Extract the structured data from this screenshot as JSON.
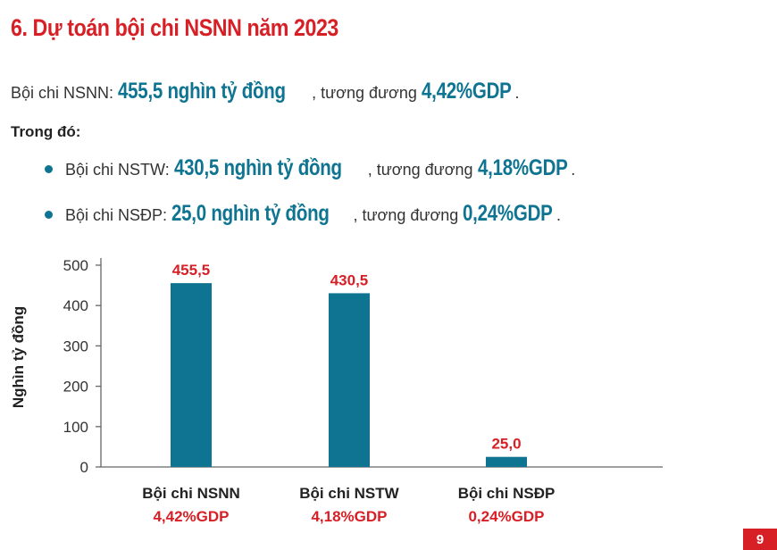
{
  "title": "6. Dự toán bội chi NSNN năm 2023",
  "summary": {
    "label": "Bội chi NSNN: ",
    "amount": "455,5 nghìn tỷ đồng",
    "mid": ", tương đương ",
    "pct": "4,42%GDP",
    "end": "."
  },
  "subhead": "Trong đó:",
  "bullets": [
    {
      "label": "Bội chi NSTW: ",
      "amount": "430,5 nghìn tỷ đồng",
      "mid": ", tương đương ",
      "pct": "4,18%GDP",
      "end": "."
    },
    {
      "label": "Bội chi NSĐP: ",
      "amount": "25,0 nghìn tỷ đồng",
      "mid": ", tương đương ",
      "pct": "0,24%GDP",
      "end": "."
    }
  ],
  "colors": {
    "title": "#d71f26",
    "bar": "#0e7491",
    "value_label": "#d71f26",
    "page_badge": "#d71f26"
  },
  "chart_data": {
    "type": "bar",
    "categories": [
      "Bội chi NSNN",
      "Bội chi NSTW",
      "Bội chi NSĐP"
    ],
    "sublabels": [
      "4,42%GDP",
      "4,18%GDP",
      "0,24%GDP"
    ],
    "values": [
      455.5,
      430.5,
      25.0
    ],
    "value_labels": [
      "455,5",
      "430,5",
      "25,0"
    ],
    "ylabel": "Nghìn tỷ đồng",
    "yticks": [
      0,
      100,
      200,
      300,
      400,
      500
    ],
    "ylim": [
      0,
      500
    ],
    "grid": false,
    "legend": "none"
  },
  "page_number": "9"
}
